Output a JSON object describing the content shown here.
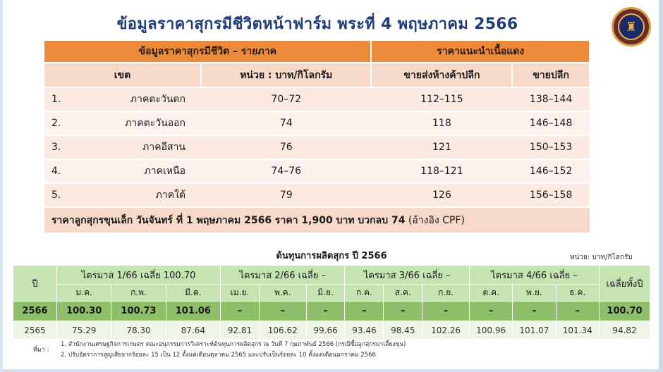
{
  "title": "ข้อมูลราคาสุกรมีชีวิตหน้าฟาร์ม พระที่ 4 พฤษภาคม 2566",
  "logo": {
    "icon": "ministry-seal-icon"
  },
  "price_table": {
    "header_left": "ข้อมูลราคาสุกรมีชีวิต – รายภาค",
    "header_right": "ราคาแนะนำเนื้อแดง",
    "col_region": "เขต",
    "col_unit": "หน่วย : บาท/กิโลกรัม",
    "col_wholesale": "ขายส่งห้างค้าปลีก",
    "col_retail": "ขายปลีก",
    "rows": [
      {
        "num": "1.",
        "region": "ภาคตะวันตก",
        "price": "70–72",
        "wholesale": "112–115",
        "retail": "138–144"
      },
      {
        "num": "2.",
        "region": "ภาคตะวันออก",
        "price": "74",
        "wholesale": "118",
        "retail": "146–148"
      },
      {
        "num": "3.",
        "region": "ภาคอีสาน",
        "price": "76",
        "wholesale": "121",
        "retail": "150–153"
      },
      {
        "num": "4.",
        "region": "ภาคเหนือ",
        "price": "74–76",
        "wholesale": "118–121",
        "retail": "146–152"
      },
      {
        "num": "5.",
        "region": "ภาคใต้",
        "price": "79",
        "wholesale": "126",
        "retail": "156–158"
      }
    ],
    "footer_main": "ราคาลูกสุกรขุนเล็ก วันจันทร์ ที่ 1 พฤษภาคม 2566 ราคา 1,900 บาท บวกลบ 74",
    "footer_note": " (อ้างอิง CPF)"
  },
  "cost_table": {
    "title": "ต้นทุนการผลิตสุกร ปี 2566",
    "unit": "หน่วย: บาท/กิโลกรัม",
    "col_year": "ปี",
    "col_avg": "เฉลี่ยทั้งปี",
    "quarters": [
      "ไตรมาส 1/66 เฉลี่ย  100.70",
      "ไตรมาส 2/66 เฉลี่ย –",
      "ไตรมาส 3/66 เฉลี่ย –",
      "ไตรมาส 4/66 เฉลี่ย –"
    ],
    "months": [
      "ม.ค.",
      "ก.พ.",
      "มี.ค.",
      "เม.ย.",
      "พ.ค.",
      "มิ.ย.",
      "ก.ค.",
      "ส.ค.",
      "ก.ย.",
      "ต.ค.",
      "พ.ย.",
      "ธ.ค."
    ],
    "rows": [
      {
        "year": "2566",
        "values": [
          "100.30",
          "100.73",
          "101.06",
          "–",
          "–",
          "–",
          "–",
          "–",
          "–",
          "–",
          "–",
          "–"
        ],
        "avg": "100.70"
      },
      {
        "year": "2565",
        "values": [
          "75.29",
          "78.30",
          "87.64",
          "92.81",
          "106.62",
          "99.66",
          "93.46",
          "98.45",
          "102.26",
          "100.96",
          "101.07",
          "101.34"
        ],
        "avg": "94.82"
      }
    ]
  },
  "source": {
    "label": "ที่มา :",
    "line1": "1. สำนักงานเศรษฐกิจการเกษตร  คณะอนุกรรมการวิเคราะห์ต้นทุนการผลิตสุกร  ณ วันที่ 7 กุมภาพันธ์ 2566 (กรณีซื้อลูกสุกรมาเลี้ยงขุน)",
    "line2": "2. ปรับอัตราการสูญเสียจากร้อยละ 15 เป็น 12 ตั้งแต่เดือนตุลาคม 2565 และปรับเป็นร้อยละ 10 ตั้งแต่เดือนมกราคม 2566"
  }
}
